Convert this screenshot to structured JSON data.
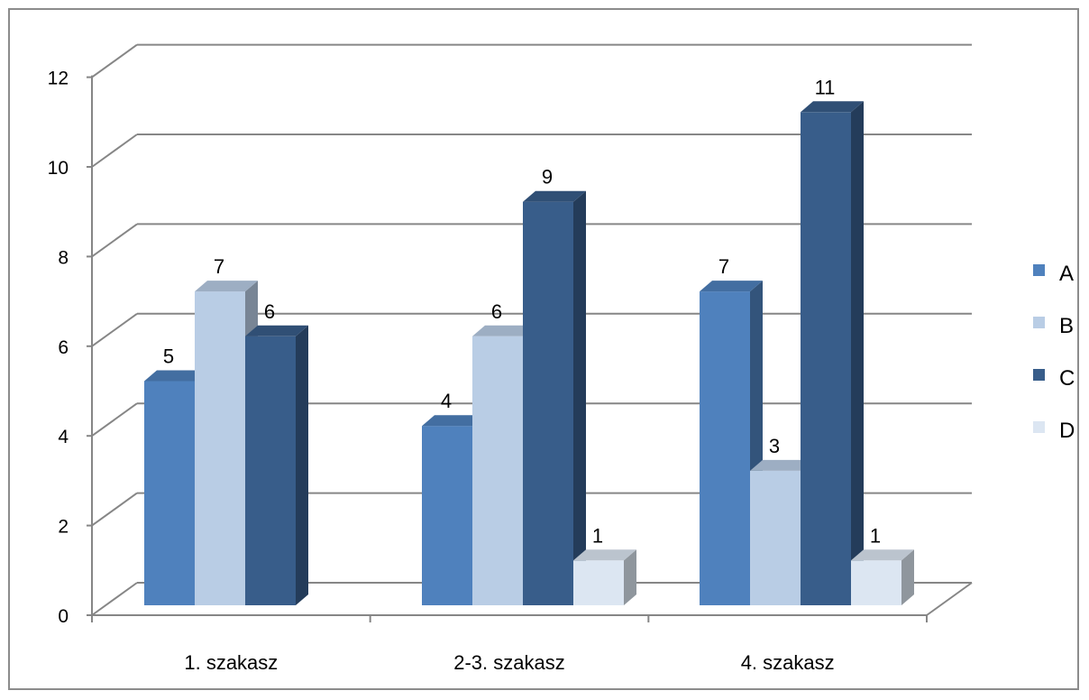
{
  "chart_data": {
    "type": "bar",
    "categories": [
      "1. szakasz",
      "2-3. szakasz",
      "4. szakasz"
    ],
    "series": [
      {
        "name": "A",
        "values": [
          5,
          4,
          7
        ],
        "color": "#4F81BD"
      },
      {
        "name": "B",
        "values": [
          7,
          6,
          3
        ],
        "color": "#B9CDE5"
      },
      {
        "name": "C",
        "values": [
          6,
          9,
          11
        ],
        "color": "#385D8A"
      },
      {
        "name": "D",
        "values": [
          null,
          1,
          1
        ],
        "color": "#DCE6F2"
      }
    ],
    "ylim": [
      0,
      12
    ],
    "yticks": [
      "0",
      "2",
      "4",
      "6",
      "8",
      "10",
      "12"
    ],
    "title": "",
    "xlabel": "",
    "ylabel": "",
    "grid": true,
    "style": "3d-clustered-column",
    "legend_position": "right"
  }
}
